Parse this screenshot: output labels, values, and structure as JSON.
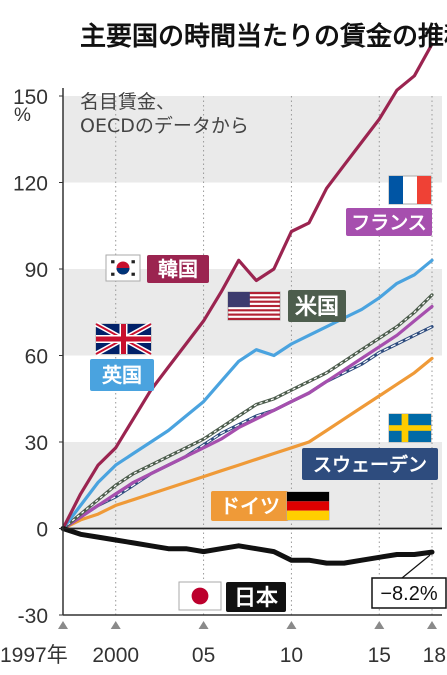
{
  "chart_data": {
    "type": "line",
    "title": "主要国の時間当たりの賃金の推移",
    "subtitle": "名目賃金、OECDのデータから",
    "ylabel": "%",
    "ylim": [
      -30,
      150
    ],
    "yticks": [
      "150",
      "120",
      "90",
      "60",
      "30",
      "0",
      "-30"
    ],
    "xlim": [
      1997,
      2018
    ],
    "xticks": [
      {
        "x": 1997,
        "label": "1997年"
      },
      {
        "x": 2000,
        "label": "2000"
      },
      {
        "x": 2005,
        "label": "05"
      },
      {
        "x": 2010,
        "label": "10"
      },
      {
        "x": 2015,
        "label": "15"
      },
      {
        "x": 2018,
        "label": "18"
      }
    ],
    "grid": "horizontal bands",
    "x": [
      1997,
      1998,
      1999,
      2000,
      2001,
      2002,
      2003,
      2004,
      2005,
      2006,
      2007,
      2008,
      2009,
      2010,
      2011,
      2012,
      2013,
      2014,
      2015,
      2016,
      2017,
      2018
    ],
    "series": [
      {
        "name": "韓国",
        "key": "korea",
        "color": "#9b2450",
        "values": [
          0,
          12,
          22,
          28,
          38,
          48,
          56,
          64,
          72,
          82,
          93,
          86,
          90,
          103,
          106,
          118,
          126,
          134,
          142,
          152,
          157,
          168
        ]
      },
      {
        "name": "英国",
        "key": "uk",
        "color": "#4aa3df",
        "values": [
          0,
          8,
          16,
          22,
          26,
          30,
          34,
          39,
          44,
          51,
          58,
          62,
          60,
          64,
          67,
          70,
          73,
          76,
          80,
          85,
          88,
          93
        ]
      },
      {
        "name": "米国",
        "key": "us",
        "color": "#4d5d4d",
        "values": [
          0,
          5,
          10,
          15,
          19,
          22,
          25,
          28,
          31,
          35,
          39,
          43,
          45,
          48,
          51,
          54,
          58,
          62,
          66,
          70,
          75,
          81
        ]
      },
      {
        "name": "フランス",
        "key": "france",
        "color": "#a64fae",
        "values": [
          0,
          4,
          8,
          12,
          16,
          19,
          22,
          25,
          28,
          31,
          35,
          38,
          41,
          44,
          47,
          51,
          55,
          59,
          63,
          67,
          72,
          77
        ]
      },
      {
        "name": "スウェーデン",
        "key": "sweden",
        "color": "#2e4c7e",
        "values": [
          0,
          4,
          8,
          11,
          15,
          19,
          22,
          25,
          29,
          33,
          36,
          39,
          41,
          44,
          47,
          51,
          54,
          57,
          61,
          64,
          67,
          70
        ]
      },
      {
        "name": "ドイツ",
        "key": "germany",
        "color": "#ef9a38",
        "values": [
          0,
          3,
          5,
          8,
          10,
          12,
          14,
          16,
          18,
          20,
          22,
          24,
          26,
          28,
          30,
          34,
          38,
          42,
          46,
          50,
          54,
          59
        ]
      },
      {
        "name": "日本",
        "key": "japan",
        "color": "#111111",
        "values": [
          0,
          -2,
          -3,
          -4,
          -5,
          -6,
          -7,
          -7,
          -8,
          -7,
          -6,
          -7,
          -8,
          -11,
          -11,
          -12,
          -12,
          -11,
          -10,
          -9,
          -9,
          -8.2
        ]
      }
    ],
    "annotations": [
      {
        "series": "日本",
        "text": "−8.2%"
      }
    ]
  },
  "colors": {
    "grid_band": "#eaeaea",
    "axis": "#333333",
    "zero_line": "#222222"
  }
}
